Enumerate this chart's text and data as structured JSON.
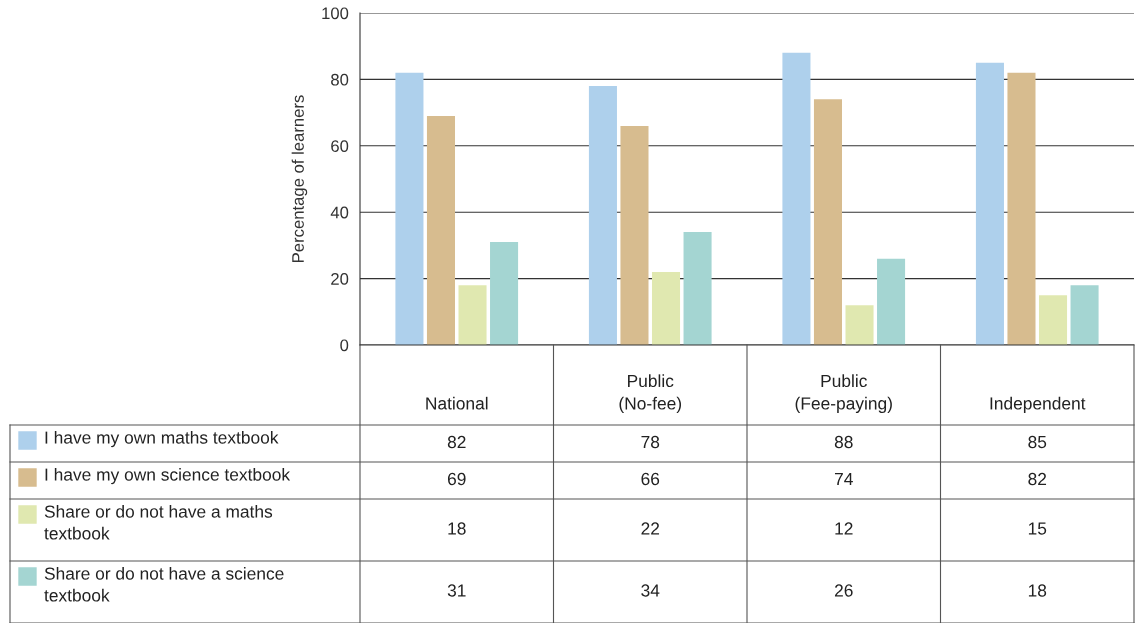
{
  "chart_data": {
    "type": "bar",
    "ylabel": "Percentage of learners",
    "categories": [
      "National",
      "Public\n(No-fee)",
      "Public\n(Fee-paying)",
      "Independent"
    ],
    "series": [
      {
        "name": "I have my own maths textbook",
        "color": "#aed0ec",
        "values": [
          82,
          78,
          88,
          85
        ]
      },
      {
        "name": "I have my own science textbook",
        "color": "#d7bc8f",
        "values": [
          69,
          66,
          74,
          82
        ]
      },
      {
        "name": "Share or do not have a maths\ntextbook",
        "color": "#e0e8b0",
        "values": [
          18,
          22,
          12,
          15
        ]
      },
      {
        "name": "Share or do not have a science\ntextbook",
        "color": "#a4d5d2",
        "values": [
          31,
          34,
          26,
          18
        ]
      }
    ],
    "ylim": [
      0,
      100
    ],
    "yticks": [
      0,
      20,
      40,
      60,
      80,
      100
    ],
    "grid": "y",
    "legend": "bottom",
    "data_labels": true
  }
}
